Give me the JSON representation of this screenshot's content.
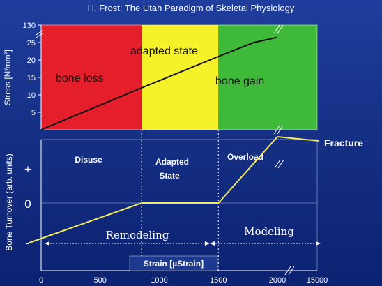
{
  "title": "H. Frost: The Utah Paradigm of Skeletal Physiology",
  "chart_data": [
    {
      "type": "line",
      "panel": "top",
      "ylabel": "Stress [N/mm²]",
      "yticks": [
        "5",
        "10",
        "15",
        "20",
        "25",
        "130"
      ],
      "ytick_values": [
        5,
        10,
        15,
        20,
        25,
        130
      ],
      "ylim": [
        0,
        130
      ],
      "ylim_note_break": "//",
      "regions": [
        {
          "label": "bone loss",
          "x_range": [
            0,
            850
          ],
          "color": "#e41e2a"
        },
        {
          "label": "adapted state",
          "x_range": [
            850,
            1500
          ],
          "color": "#f6f22a"
        },
        {
          "label": "bone gain",
          "x_range": [
            1500,
            15000
          ],
          "color": "#3fb93a"
        }
      ],
      "series": [
        {
          "x": [
            0,
            850,
            1500,
            1800,
            2000
          ],
          "y": [
            0,
            12,
            21,
            25,
            26.5
          ],
          "color": "#111111"
        }
      ]
    },
    {
      "type": "line",
      "panel": "bottom",
      "ylabel": "Bone Turnover (arb. units)",
      "yticks": [
        "+",
        "0",
        "-"
      ],
      "xlabel": "Strain [µStrain]",
      "xticks": [
        "0",
        "500",
        "1000",
        "1500",
        "2000",
        "15000"
      ],
      "xtick_values": [
        0,
        500,
        1000,
        1500,
        2000,
        15000
      ],
      "zones": [
        {
          "label": "Disuse"
        },
        {
          "label": "Adapted\nState",
          "lines": [
            "Adapted",
            "State"
          ]
        },
        {
          "label": "Overload"
        }
      ],
      "arrows": [
        {
          "label": "Remodeling",
          "x_range": [
            0,
            1500
          ]
        },
        {
          "label": "Modeling",
          "x_range": [
            1500,
            2000
          ]
        }
      ],
      "annotation": "Fracture",
      "series": [
        {
          "x": [
            -100,
            850,
            1500,
            2000
          ],
          "y": [
            -1.5,
            0,
            0,
            2.5
          ],
          "color": "#f2ea5a"
        }
      ],
      "dividers_x": [
        850,
        1500
      ]
    }
  ]
}
